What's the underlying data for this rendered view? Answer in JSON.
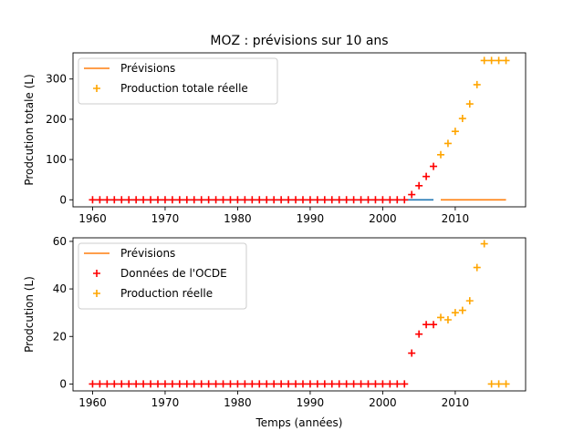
{
  "chart_data": [
    {
      "type": "line",
      "title": "MOZ : prévisions sur 10 ans",
      "xlabel": "",
      "ylabel": "Prodcution totale (L)",
      "xlim": [
        1957.3,
        2019.7
      ],
      "ylim": [
        -17.5,
        365
      ],
      "xticks": [
        1960,
        1970,
        1980,
        1990,
        2000,
        2010
      ],
      "yticks": [
        0,
        100,
        200,
        300
      ],
      "grid": false,
      "legend_position": "upper-left",
      "legend": [
        "Prévisions",
        "Production totale réelle"
      ],
      "colors": {
        "forecast": "#ff7f0e",
        "actual_marker": "#ffa500",
        "red_marker": "#ff0000",
        "blue_line": "#1f77b4"
      },
      "series": [
        {
          "name": "Prévisions",
          "style": "line",
          "color": "#ff7f0e",
          "x": [
            2008,
            2017
          ],
          "y": [
            0,
            0
          ]
        },
        {
          "style": "line",
          "color": "#1f77b4",
          "x": [
            1960,
            2007
          ],
          "y": [
            0,
            0
          ]
        },
        {
          "style": "plus",
          "color": "#ff0000",
          "x": [
            1960,
            1961,
            1962,
            1963,
            1964,
            1965,
            1966,
            1967,
            1968,
            1969,
            1970,
            1971,
            1972,
            1973,
            1974,
            1975,
            1976,
            1977,
            1978,
            1979,
            1980,
            1981,
            1982,
            1983,
            1984,
            1985,
            1986,
            1987,
            1988,
            1989,
            1990,
            1991,
            1992,
            1993,
            1994,
            1995,
            1996,
            1997,
            1998,
            1999,
            2000,
            2001,
            2002,
            2003,
            2004,
            2005,
            2006,
            2007
          ],
          "y": [
            0,
            0,
            0,
            0,
            0,
            0,
            0,
            0,
            0,
            0,
            0,
            0,
            0,
            0,
            0,
            0,
            0,
            0,
            0,
            0,
            0,
            0,
            0,
            0,
            0,
            0,
            0,
            0,
            0,
            0,
            0,
            0,
            0,
            0,
            0,
            0,
            0,
            0,
            0,
            0,
            0,
            0,
            0,
            0,
            13,
            35,
            58,
            83
          ]
        },
        {
          "name": "Production totale réelle",
          "style": "plus",
          "color": "#ffa500",
          "x": [
            2008,
            2009,
            2010,
            2011,
            2012,
            2013,
            2014,
            2015,
            2016,
            2017
          ],
          "y": [
            112,
            140,
            170,
            202,
            238,
            286,
            346,
            346,
            346,
            346
          ]
        }
      ]
    },
    {
      "type": "line",
      "title": "",
      "xlabel": "Temps (années)",
      "ylabel": "Prodcution (L)",
      "xlim": [
        1957.3,
        2019.7
      ],
      "ylim": [
        -2.9,
        61.5
      ],
      "xticks": [
        1960,
        1970,
        1980,
        1990,
        2000,
        2010
      ],
      "yticks": [
        0,
        20,
        40,
        60
      ],
      "grid": false,
      "legend_position": "upper-left",
      "legend": [
        "Prévisions",
        "Données de l'OCDE",
        "Production réelle"
      ],
      "series": [
        {
          "name": "Prévisions",
          "style": "line",
          "color": "#ff7f0e",
          "x": [],
          "y": []
        },
        {
          "name": "Données de l'OCDE",
          "style": "plus",
          "color": "#ff0000",
          "x": [
            1960,
            1961,
            1962,
            1963,
            1964,
            1965,
            1966,
            1967,
            1968,
            1969,
            1970,
            1971,
            1972,
            1973,
            1974,
            1975,
            1976,
            1977,
            1978,
            1979,
            1980,
            1981,
            1982,
            1983,
            1984,
            1985,
            1986,
            1987,
            1988,
            1989,
            1990,
            1991,
            1992,
            1993,
            1994,
            1995,
            1996,
            1997,
            1998,
            1999,
            2000,
            2001,
            2002,
            2003,
            2004,
            2005,
            2006,
            2007
          ],
          "y": [
            0,
            0,
            0,
            0,
            0,
            0,
            0,
            0,
            0,
            0,
            0,
            0,
            0,
            0,
            0,
            0,
            0,
            0,
            0,
            0,
            0,
            0,
            0,
            0,
            0,
            0,
            0,
            0,
            0,
            0,
            0,
            0,
            0,
            0,
            0,
            0,
            0,
            0,
            0,
            0,
            0,
            0,
            0,
            0,
            13,
            21,
            25,
            25
          ]
        },
        {
          "name": "Production réelle",
          "style": "plus",
          "color": "#ffa500",
          "x": [
            2008,
            2009,
            2010,
            2011,
            2012,
            2013,
            2014,
            2015,
            2016,
            2017
          ],
          "y": [
            28,
            27,
            30,
            31,
            35,
            49,
            59,
            0,
            0,
            0
          ]
        }
      ]
    }
  ]
}
